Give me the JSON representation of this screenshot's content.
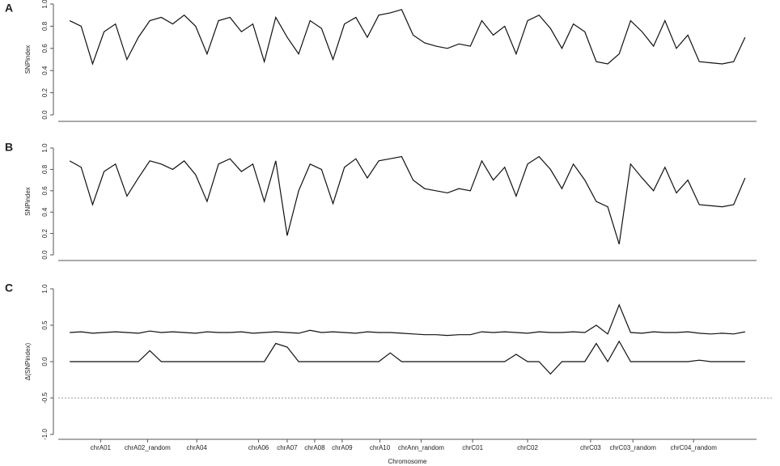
{
  "chart_data": [
    {
      "type": "line",
      "panel": "A",
      "ylabel": "SNPindex",
      "x": [
        1,
        2,
        3,
        4,
        5,
        6,
        7,
        8,
        9,
        10,
        11,
        12,
        13,
        14,
        15,
        16,
        17,
        18,
        19,
        20,
        21,
        22,
        23,
        24,
        25,
        26,
        27,
        28,
        29,
        30,
        31,
        32,
        33,
        34,
        35,
        36,
        37,
        38,
        39,
        40,
        41,
        42,
        43,
        44,
        45,
        46,
        47,
        48,
        49,
        50,
        51,
        52,
        53,
        54,
        55,
        56,
        57,
        58,
        59,
        60
      ],
      "series": [
        {
          "color": "#111111",
          "values": [
            0.85,
            0.8,
            0.46,
            0.75,
            0.82,
            0.5,
            0.7,
            0.85,
            0.88,
            0.82,
            0.9,
            0.8,
            0.55,
            0.85,
            0.88,
            0.75,
            0.82,
            0.48,
            0.88,
            0.7,
            0.55,
            0.85,
            0.78,
            0.5,
            0.82,
            0.88,
            0.7,
            0.9,
            0.92,
            0.95,
            0.72,
            0.65,
            0.62,
            0.6,
            0.64,
            0.62,
            0.85,
            0.72,
            0.8,
            0.55,
            0.85,
            0.9,
            0.78,
            0.6,
            0.82,
            0.75,
            0.48,
            0.46,
            0.55,
            0.85,
            0.75,
            0.62,
            0.85,
            0.6,
            0.72,
            0.48,
            0.47,
            0.46,
            0.48,
            0.7
          ]
        }
      ],
      "xlim": [
        0,
        61
      ],
      "ylim": [
        0,
        1
      ],
      "yticks": [
        {
          "value": 0,
          "label": "0.0"
        },
        0.2,
        0.4,
        0.6,
        0.8,
        {
          "value": 1,
          "label": "1.0"
        }
      ]
    },
    {
      "type": "line",
      "panel": "B",
      "ylabel": "SNPindex",
      "x": [
        1,
        2,
        3,
        4,
        5,
        6,
        7,
        8,
        9,
        10,
        11,
        12,
        13,
        14,
        15,
        16,
        17,
        18,
        19,
        20,
        21,
        22,
        23,
        24,
        25,
        26,
        27,
        28,
        29,
        30,
        31,
        32,
        33,
        34,
        35,
        36,
        37,
        38,
        39,
        40,
        41,
        42,
        43,
        44,
        45,
        46,
        47,
        48,
        49,
        50,
        51,
        52,
        53,
        54,
        55,
        56,
        57,
        58,
        59,
        60
      ],
      "series": [
        {
          "color": "#111111",
          "values": [
            0.88,
            0.82,
            0.47,
            0.78,
            0.85,
            0.55,
            0.72,
            0.88,
            0.85,
            0.8,
            0.88,
            0.75,
            0.5,
            0.85,
            0.9,
            0.78,
            0.85,
            0.5,
            0.88,
            0.18,
            0.6,
            0.85,
            0.8,
            0.48,
            0.82,
            0.9,
            0.72,
            0.88,
            0.9,
            0.92,
            0.7,
            0.62,
            0.6,
            0.58,
            0.62,
            0.6,
            0.88,
            0.7,
            0.82,
            0.55,
            0.85,
            0.92,
            0.8,
            0.62,
            0.85,
            0.7,
            0.5,
            0.45,
            0.1,
            0.85,
            0.72,
            0.6,
            0.82,
            0.58,
            0.7,
            0.47,
            0.46,
            0.45,
            0.47,
            0.72
          ]
        }
      ],
      "xlim": [
        0,
        61
      ],
      "ylim": [
        0,
        1
      ],
      "yticks": [
        {
          "value": 0,
          "label": "0.0"
        },
        0.2,
        0.4,
        0.6,
        0.8,
        {
          "value": 1,
          "label": "1.0"
        }
      ]
    },
    {
      "type": "line",
      "panel": "C",
      "ylabel": "Δ(SNPindex)",
      "xlabel": "Chromosome",
      "x": [
        1,
        2,
        3,
        4,
        5,
        6,
        7,
        8,
        9,
        10,
        11,
        12,
        13,
        14,
        15,
        16,
        17,
        18,
        19,
        20,
        21,
        22,
        23,
        24,
        25,
        26,
        27,
        28,
        29,
        30,
        31,
        32,
        33,
        34,
        35,
        36,
        37,
        38,
        39,
        40,
        41,
        42,
        43,
        44,
        45,
        46,
        47,
        48,
        49,
        50,
        51,
        52,
        53,
        54,
        55,
        56,
        57,
        58,
        59,
        60
      ],
      "series": [
        {
          "color": "#111111",
          "values": [
            0.4,
            0.41,
            0.39,
            0.4,
            0.41,
            0.4,
            0.39,
            0.42,
            0.4,
            0.41,
            0.4,
            0.39,
            0.41,
            0.4,
            0.4,
            0.41,
            0.39,
            0.4,
            0.41,
            0.4,
            0.39,
            0.43,
            0.4,
            0.41,
            0.4,
            0.39,
            0.41,
            0.4,
            0.4,
            0.39,
            0.38,
            0.37,
            0.37,
            0.36,
            0.37,
            0.37,
            0.41,
            0.4,
            0.41,
            0.4,
            0.39,
            0.41,
            0.4,
            0.4,
            0.41,
            0.4,
            0.5,
            0.38,
            0.78,
            0.4,
            0.39,
            0.41,
            0.4,
            0.4,
            0.41,
            0.39,
            0.38,
            0.39,
            0.38,
            0.41
          ]
        },
        {
          "color": "#111111",
          "values": [
            0,
            0,
            0,
            0,
            0,
            0,
            0,
            0.15,
            0,
            0,
            0,
            0,
            0,
            0,
            0,
            0,
            0,
            0,
            0.25,
            0.2,
            0,
            0,
            0,
            0,
            0,
            0,
            0,
            0,
            0.12,
            0,
            0,
            0,
            0,
            0,
            0,
            0,
            0,
            0,
            0,
            0.1,
            0,
            0,
            -0.17,
            0,
            0,
            0,
            0.25,
            0,
            0.28,
            0,
            0,
            0,
            0,
            0,
            0,
            0.02,
            0,
            0,
            0,
            0
          ]
        }
      ],
      "threshold": -0.5,
      "xlim": [
        0,
        61
      ],
      "ylim": [
        -1,
        1
      ],
      "yticks": [
        {
          "value": -1,
          "label": "-1.0"
        },
        -0.5,
        {
          "value": 0,
          "label": "0.0"
        },
        0.5,
        {
          "value": 1,
          "label": "1.0"
        }
      ],
      "xticks": [
        {
          "value": 3.7,
          "label": "chrA01"
        },
        {
          "value": 7.8,
          "label": "chrA02_random"
        },
        {
          "value": 12.1,
          "label": "chrA04"
        },
        {
          "value": 17.5,
          "label": "chrA06"
        },
        {
          "value": 20,
          "label": "chrA07"
        },
        {
          "value": 22.4,
          "label": "chrA08"
        },
        {
          "value": 24.8,
          "label": "chrA09"
        },
        {
          "value": 28.1,
          "label": "chrA10"
        },
        {
          "value": 31.7,
          "label": "chrAnn_random"
        },
        {
          "value": 36.2,
          "label": "chrC01"
        },
        {
          "value": 41,
          "label": "chrC02"
        },
        {
          "value": 46.5,
          "label": "chrC03"
        },
        {
          "value": 50.2,
          "label": "chrC03_random"
        },
        {
          "value": 55.5,
          "label": "chrC04_random"
        }
      ]
    }
  ]
}
